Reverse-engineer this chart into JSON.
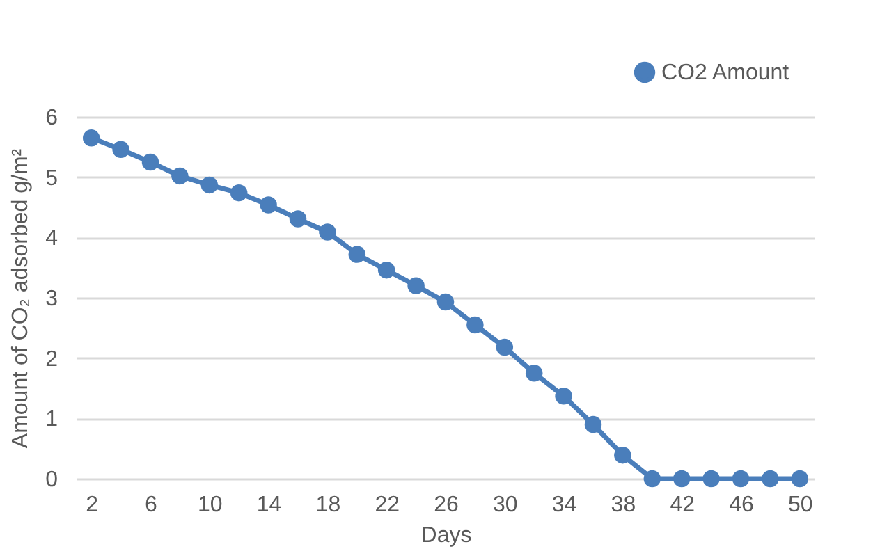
{
  "chart_data": {
    "type": "line",
    "xlabel": "Days",
    "ylabel": "Amount of CO₂ adsorbed g/m²",
    "x": [
      2,
      4,
      6,
      8,
      10,
      12,
      14,
      16,
      18,
      20,
      22,
      24,
      26,
      28,
      30,
      32,
      34,
      36,
      38,
      40,
      42,
      44,
      46,
      48,
      50
    ],
    "series": [
      {
        "name": "CO2 Amount",
        "color": "#4a7ebb",
        "values": [
          5.65,
          5.46,
          5.25,
          5.02,
          4.87,
          4.74,
          4.54,
          4.31,
          4.09,
          3.72,
          3.46,
          3.2,
          2.93,
          2.55,
          2.18,
          1.75,
          1.37,
          0.9,
          0.39,
          0,
          0,
          0,
          0,
          0,
          0
        ]
      }
    ],
    "xlim": [
      1,
      51
    ],
    "xticks": [
      2,
      6,
      10,
      14,
      18,
      22,
      26,
      30,
      34,
      38,
      42,
      46,
      50
    ],
    "ylim": [
      0,
      6
    ],
    "yticks": [
      0,
      1,
      2,
      3,
      4,
      5,
      6
    ],
    "grid": "y",
    "legend": "top right",
    "marker": "circle",
    "line_style": "solid"
  }
}
